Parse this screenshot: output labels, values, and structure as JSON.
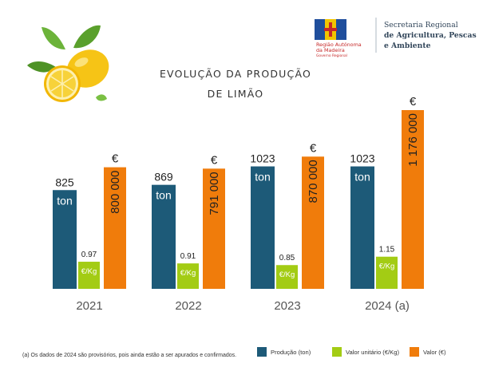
{
  "header": {
    "region_line1": "Região Autónoma",
    "region_line2": "da Madeira",
    "region_line3": "Governo Regional",
    "secretaria_line1": "Secretaria Regional",
    "secretaria_line2": "de Agricultura, Pescas",
    "secretaria_line3": "e Ambiente"
  },
  "footnote": "(a) Os dados de 2024 são provisórios, pois ainda estão a ser apurados e confirmados.",
  "colors": {
    "production": "#1d5a78",
    "unit_value": "#a3cc14",
    "value": "#f07c0b"
  },
  "chart_data": {
    "type": "bar",
    "title_line1": "EVOLUÇÃO DA PRODUÇÃO",
    "title_line2": "DE LIMÃO",
    "categories": [
      "2021",
      "2022",
      "2023",
      "2024 (a)"
    ],
    "series": [
      {
        "name": "Produção (ton)",
        "unit": "ton",
        "values": [
          825,
          869,
          1023,
          1023
        ],
        "labels": [
          "825",
          "869",
          "1023",
          "1023"
        ]
      },
      {
        "name": "Valor unitário (€/Kg)",
        "unit": "€/Kg",
        "values": [
          0.97,
          0.91,
          0.85,
          1.15
        ],
        "labels": [
          "0.97",
          "0.91",
          "0.85",
          "1.15"
        ]
      },
      {
        "name": "Valor (€)",
        "unit": "€",
        "values": [
          800000,
          791000,
          870000,
          1176000
        ],
        "labels": [
          "800 000",
          "791 000",
          "870 000",
          "1 176 000"
        ]
      }
    ],
    "legend_position": "bottom-right",
    "grid": false
  }
}
